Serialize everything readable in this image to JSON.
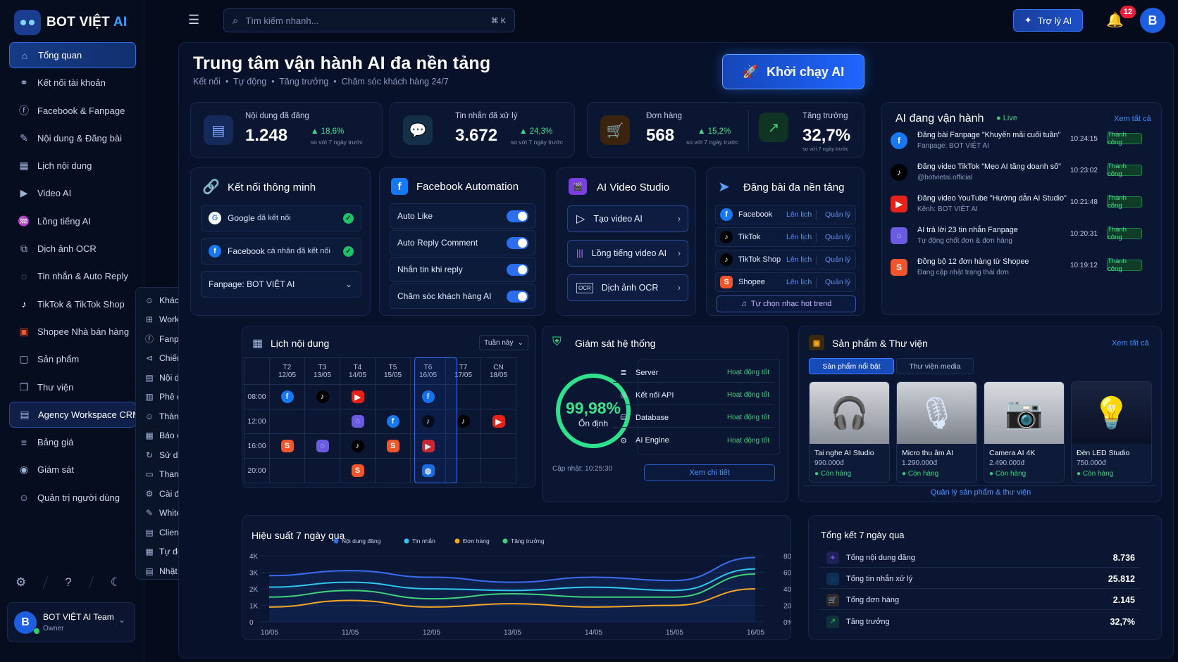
{
  "brand": {
    "name_part1": "BOT VIỆT ",
    "name_part2": "AI"
  },
  "sidebar": {
    "items": [
      {
        "label": "Tổng quan",
        "icon": "home-icon"
      },
      {
        "label": "Kết nối tài khoản",
        "icon": "link-icon"
      },
      {
        "label": "Facebook & Fanpage",
        "icon": "facebook-icon"
      },
      {
        "label": "Nội dung & Đăng bài",
        "icon": "edit-icon"
      },
      {
        "label": "Lịch nội dung",
        "icon": "calendar-icon"
      },
      {
        "label": "Video AI",
        "icon": "video-icon"
      },
      {
        "label": "Lồng tiếng AI",
        "icon": "voice-icon"
      },
      {
        "label": "Dịch ảnh OCR",
        "icon": "ocr-icon"
      },
      {
        "label": "Tin nhắn & Auto Reply",
        "icon": "chat-icon"
      },
      {
        "label": "TikTok & TikTok Shop",
        "icon": "tiktok-icon"
      },
      {
        "label": "Shopee Nhà bán hàng",
        "icon": "shopee-icon"
      },
      {
        "label": "Sản phẩm",
        "icon": "bag-icon"
      },
      {
        "label": "Thư viện",
        "icon": "book-icon"
      },
      {
        "label": "Agency Workspace CRM",
        "icon": "crm-icon"
      },
      {
        "label": "Bảng giá",
        "icon": "price-icon"
      },
      {
        "label": "Giám sát",
        "icon": "eye-icon"
      },
      {
        "label": "Quản trị người dùng",
        "icon": "users-icon"
      }
    ],
    "submenu": [
      "Khách hàng",
      "Workspace",
      "Fanpage",
      "Chiến dịch",
      "Nội dung",
      "Phê duyệt",
      "Thành viên",
      "Báo cáo",
      "Sử dụng & Gói cước",
      "Thanh toán",
      "Cài đặt",
      "White-label",
      "Client Portal",
      "Tự động báo cáo",
      "Nhật ký hoạt động"
    ],
    "user": {
      "initial": "B",
      "name": "BOT VIỆT AI Team",
      "role": "Owner"
    }
  },
  "topbar": {
    "search_placeholder": "Tìm kiếm nhanh...",
    "shortcut": "⌘ K",
    "assistant_label": "Trợ lý AI",
    "notifications": "12",
    "avatar": "B"
  },
  "hero": {
    "title": "Trung tâm vận hành AI đa nền tảng",
    "subtitle": "Kết nối  •  Tự động  •  Tăng trưởng  •  Chăm sóc khách hàng 24/7",
    "launch_label": "Khởi chạy AI"
  },
  "stats": [
    {
      "label": "Nội dung đã đăng",
      "value": "1.248",
      "change": "▲ 18,6%",
      "note": "so với 7 ngày trước"
    },
    {
      "label": "Tin nhắn đã xử lý",
      "value": "3.672",
      "change": "▲ 24,3%",
      "note": "so với 7 ngày trước"
    },
    {
      "label": "Đơn hàng",
      "value": "568",
      "change": "▲ 15,2%",
      "note": "so với 7 ngày trước"
    },
    {
      "label": "Tăng trưởng",
      "value": "32,7%",
      "note": "so với 7 ngày trước"
    }
  ],
  "connect": {
    "title": "Kết nối thông minh",
    "google": "Google",
    "google_status": "đã kết nối",
    "facebook": "Facebook",
    "facebook_status": "cá nhân đã kết nối",
    "fanpage_label": "Fanpage:",
    "fanpage_value": "BOT VIỆT AI"
  },
  "fb_auto": {
    "title": "Facebook Automation",
    "items": [
      "Auto Like",
      "Auto Reply Comment",
      "Nhắn tin khi reply",
      "Chăm sóc khách hàng AI"
    ]
  },
  "video": {
    "title": "AI Video Studio",
    "items": [
      "Tạo video AI",
      "Lồng tiếng video AI",
      "Dịch ảnh OCR"
    ]
  },
  "multi": {
    "title": "Đăng bài đa nền tảng",
    "platforms": [
      "Facebook",
      "TikTok",
      "TikTok Shop",
      "Shopee"
    ],
    "schedule": "Lên lịch",
    "manage": "Quản lý",
    "music": "Tự chọn nhạc hot trend"
  },
  "feed": {
    "title": "AI đang vận hành",
    "live": "Live",
    "see_all": "Xem tất cả",
    "items": [
      {
        "title": "Đăng bài Fanpage \"Khuyến mãi cuối tuần\"",
        "sub": "Fanpage: BOT VIỆT AI",
        "time": "10:24:15",
        "status": "Thành công"
      },
      {
        "title": "Đăng video TikTok \"Mẹo AI tăng doanh số\"",
        "sub": "@botvietai.official",
        "time": "10:23:02",
        "status": "Thành công"
      },
      {
        "title": "Đăng video YouTube \"Hướng dẫn AI Studio\"",
        "sub": "Kênh: BOT VIỆT AI",
        "time": "10:21:48",
        "status": "Thành công"
      },
      {
        "title": "AI trả lời 23 tin nhắn Fanpage",
        "sub": "Tự động chốt đơn & đơn hàng",
        "time": "10:20:31",
        "status": "Thành công"
      },
      {
        "title": "Đồng bộ 12 đơn hàng từ Shopee",
        "sub": "Đang cập nhật trạng thái đơn",
        "time": "10:19:12",
        "status": "Thành công"
      }
    ]
  },
  "calendar": {
    "title": "Lịch nội dung",
    "range": "Tuần này",
    "days": [
      {
        "d": "T2",
        "date": "12/05"
      },
      {
        "d": "T3",
        "date": "13/05"
      },
      {
        "d": "T4",
        "date": "14/05"
      },
      {
        "d": "T5",
        "date": "15/05"
      },
      {
        "d": "T6",
        "date": "16/05"
      },
      {
        "d": "T7",
        "date": "17/05"
      },
      {
        "d": "CN",
        "date": "18/05"
      }
    ],
    "times": [
      "08:00",
      "12:00",
      "16:00",
      "20:00"
    ]
  },
  "monitor": {
    "title": "Giám sát hệ thống",
    "uptime": "99,98%",
    "uptime_fraction": 0.9998,
    "state": "Ổn định",
    "updated": "Cập nhật: 10:25:30",
    "detail": "Xem chi tiết",
    "rows": [
      {
        "name": "Server",
        "status": "Hoạt động tốt"
      },
      {
        "name": "Kết nối API",
        "status": "Hoạt động tốt"
      },
      {
        "name": "Database",
        "status": "Hoạt động tốt"
      },
      {
        "name": "AI Engine",
        "status": "Hoạt động tốt"
      }
    ]
  },
  "products": {
    "title": "Sản phẩm & Thư viện",
    "see_all": "Xem tất cả",
    "tab1": "Sản phẩm nổi bật",
    "tab2": "Thư viện media",
    "manage": "Quản lý sản phẩm & thư viện",
    "items": [
      {
        "name": "Tai nghe AI Studio",
        "price": "990.000đ",
        "stock": "Còn hàng"
      },
      {
        "name": "Micro thu âm AI",
        "price": "1.290.000đ",
        "stock": "Còn hàng"
      },
      {
        "name": "Camera AI 4K",
        "price": "2.490.000đ",
        "stock": "Còn hàng"
      },
      {
        "name": "Đèn LED Studio",
        "price": "750.000đ",
        "stock": "Còn hàng"
      }
    ]
  },
  "perf": {
    "title": "Hiệu suất 7 ngày qua"
  },
  "summary": {
    "title": "Tổng kết 7 ngày qua",
    "rows": [
      {
        "label": "Tổng nội dung đăng",
        "value": "8.736"
      },
      {
        "label": "Tổng tin nhắn xử lý",
        "value": "25.812"
      },
      {
        "label": "Tổng đơn hàng",
        "value": "2.145"
      },
      {
        "label": "Tăng trưởng",
        "value": "32,7%"
      }
    ]
  },
  "chart_data": {
    "type": "line",
    "x": [
      "10/05",
      "11/05",
      "12/05",
      "13/05",
      "14/05",
      "15/05",
      "16/05"
    ],
    "ylim": [
      0,
      4000
    ],
    "yticks": [
      "4K",
      "3K",
      "2K",
      "1K",
      "0"
    ],
    "y2ticks": [
      "80%",
      "60%",
      "40%",
      "20%",
      "0%"
    ],
    "y2lim": [
      0,
      80
    ],
    "legend_position": "top",
    "series": [
      {
        "name": "Nội dung đăng",
        "color": "#3b6cf0",
        "axis": "left",
        "values": [
          2800,
          3100,
          2700,
          2400,
          2700,
          2500,
          3900
        ]
      },
      {
        "name": "Tin nhắn",
        "color": "#2fc6f0",
        "axis": "left",
        "values": [
          2100,
          2400,
          2000,
          1900,
          2100,
          1900,
          3200
        ]
      },
      {
        "name": "Đơn hàng",
        "color": "#f5a623",
        "axis": "left",
        "values": [
          900,
          1300,
          900,
          1100,
          900,
          1000,
          2000
        ]
      },
      {
        "name": "Tăng trưởng",
        "color": "#3fd27a",
        "axis": "left",
        "values": [
          1500,
          1900,
          1400,
          1700,
          1500,
          1500,
          2900
        ]
      }
    ]
  }
}
